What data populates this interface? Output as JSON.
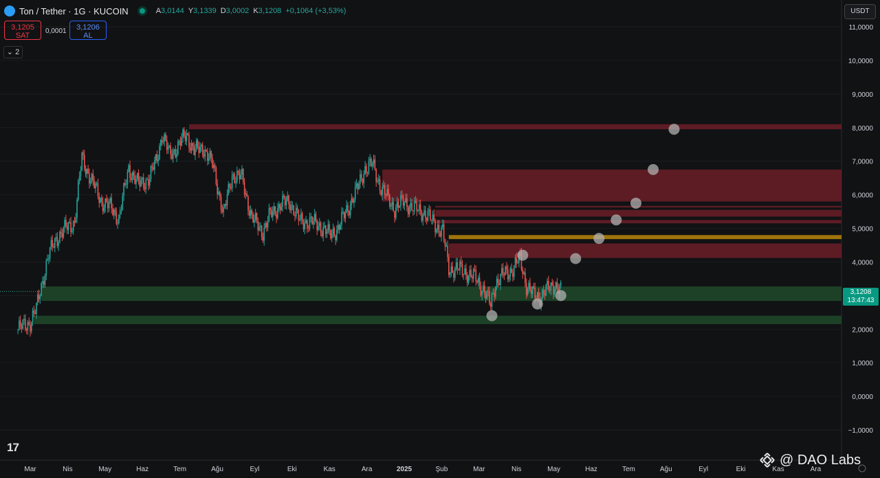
{
  "header": {
    "symbol_title": "Ton / Tether · 1G · KUCOIN",
    "ohlc": [
      {
        "k": "A",
        "v": "3,0144"
      },
      {
        "k": "Y",
        "v": "3,1339"
      },
      {
        "k": "D",
        "v": "3,0002"
      },
      {
        "k": "K",
        "v": "3,1208"
      },
      {
        "k": "",
        "v": "+0,1064 (+3,53%)"
      }
    ]
  },
  "trade": {
    "sell_price": "3,1205",
    "sell_label": "SAT",
    "spread": "0,0001",
    "buy_price": "3,1206",
    "buy_label": "AL"
  },
  "indicator_toggle": "2",
  "currency_button": "USDT",
  "last_price": {
    "value": "3,1208",
    "countdown": "13:47:43"
  },
  "watermark": {
    "tv_logo": "17",
    "brand": "@ DAO Labs"
  },
  "colors": {
    "background": "#111214",
    "up": "#26a69a",
    "down": "#ef5350",
    "resistance_zone": "#6b1f27",
    "support_zone": "#1f4a2a",
    "pivot_line": "#b8860b",
    "marker": "#b0b0b0"
  },
  "chart_data": {
    "type": "candlestick",
    "y_ticks": [
      "11,0000",
      "10,0000",
      "9,0000",
      "8,0000",
      "7,0000",
      "6,0000",
      "5,0000",
      "4,0000",
      "3,0000",
      "2,0000",
      "1,0000",
      "0,0000",
      "−1,0000"
    ],
    "y_tick_values": [
      11,
      10,
      9,
      8,
      7,
      6,
      5,
      4,
      3,
      2,
      1,
      0,
      -1
    ],
    "x_ticks": [
      "Mar",
      "Nis",
      "May",
      "Haz",
      "Tem",
      "Ağu",
      "Eyl",
      "Eki",
      "Kas",
      "Ara",
      "2025",
      "Şub",
      "Mar",
      "Nis",
      "May",
      "Haz",
      "Tem",
      "Ağu",
      "Eyl",
      "Eki",
      "Kas",
      "Ara"
    ],
    "price_path": [
      [
        "2024-02-20",
        2.0
      ],
      [
        "2024-03-01",
        2.2
      ],
      [
        "2024-03-06",
        2.6
      ],
      [
        "2024-03-10",
        3.3
      ],
      [
        "2024-03-16",
        4.2
      ],
      [
        "2024-03-22",
        4.7
      ],
      [
        "2024-03-30",
        5.0
      ],
      [
        "2024-04-06",
        5.2
      ],
      [
        "2024-04-12",
        7.1
      ],
      [
        "2024-04-20",
        6.4
      ],
      [
        "2024-04-28",
        5.8
      ],
      [
        "2024-05-06",
        5.6
      ],
      [
        "2024-05-12",
        5.3
      ],
      [
        "2024-05-20",
        6.8
      ],
      [
        "2024-05-28",
        6.3
      ],
      [
        "2024-06-06",
        6.5
      ],
      [
        "2024-06-12",
        7.1
      ],
      [
        "2024-06-16",
        7.8
      ],
      [
        "2024-06-22",
        7.2
      ],
      [
        "2024-06-28",
        7.4
      ],
      [
        "2024-07-06",
        7.8
      ],
      [
        "2024-07-12",
        7.3
      ],
      [
        "2024-07-20",
        7.4
      ],
      [
        "2024-07-28",
        6.8
      ],
      [
        "2024-08-05",
        5.4
      ],
      [
        "2024-08-12",
        6.6
      ],
      [
        "2024-08-20",
        6.5
      ],
      [
        "2024-08-28",
        5.3
      ],
      [
        "2024-09-06",
        4.9
      ],
      [
        "2024-09-12",
        5.4
      ],
      [
        "2024-09-20",
        5.7
      ],
      [
        "2024-09-28",
        5.8
      ],
      [
        "2024-10-06",
        5.2
      ],
      [
        "2024-10-14",
        5.2
      ],
      [
        "2024-10-22",
        5.1
      ],
      [
        "2024-10-30",
        4.8
      ],
      [
        "2024-11-06",
        5.0
      ],
      [
        "2024-11-14",
        5.6
      ],
      [
        "2024-11-22",
        6.2
      ],
      [
        "2024-11-28",
        6.8
      ],
      [
        "2024-12-04",
        6.9
      ],
      [
        "2024-12-10",
        6.3
      ],
      [
        "2024-12-16",
        5.9
      ],
      [
        "2024-12-22",
        5.6
      ],
      [
        "2024-12-30",
        5.8
      ],
      [
        "2025-01-06",
        5.6
      ],
      [
        "2025-01-14",
        5.5
      ],
      [
        "2025-01-22",
        5.2
      ],
      [
        "2025-01-30",
        4.9
      ],
      [
        "2025-02-04",
        3.8
      ],
      [
        "2025-02-10",
        3.8
      ],
      [
        "2025-02-18",
        3.7
      ],
      [
        "2025-02-26",
        3.5
      ],
      [
        "2025-03-04",
        3.2
      ],
      [
        "2025-03-10",
        2.7
      ],
      [
        "2025-03-14",
        3.4
      ],
      [
        "2025-03-20",
        3.6
      ],
      [
        "2025-03-28",
        3.8
      ],
      [
        "2025-04-03",
        4.1
      ],
      [
        "2025-04-08",
        3.3
      ],
      [
        "2025-04-14",
        3.0
      ],
      [
        "2025-04-20",
        3.0
      ],
      [
        "2025-04-26",
        3.2
      ],
      [
        "2025-05-01",
        3.35
      ],
      [
        "2025-05-06",
        3.12
      ]
    ],
    "resistance_zones": [
      {
        "from": "2024-07-08",
        "to": "2025-12-31",
        "low": 7.95,
        "high": 8.1
      },
      {
        "from": "2024-12-12",
        "to": "2025-12-31",
        "low": 5.8,
        "high": 6.75
      },
      {
        "from": "2025-01-24",
        "to": "2025-12-31",
        "low": 5.62,
        "high": 5.67
      },
      {
        "from": "2025-01-24",
        "to": "2025-12-31",
        "low": 5.35,
        "high": 5.55
      },
      {
        "from": "2025-01-24",
        "to": "2025-12-31",
        "low": 5.15,
        "high": 5.25
      },
      {
        "from": "2025-02-04",
        "to": "2025-12-31",
        "low": 4.12,
        "high": 4.55
      }
    ],
    "pivot_lines": [
      {
        "from": "2025-02-04",
        "to": "2025-12-31",
        "low": 4.68,
        "high": 4.8
      }
    ],
    "support_zones": [
      {
        "from": "2024-03-10",
        "to": "2025-12-31",
        "low": 2.84,
        "high": 3.27
      },
      {
        "from": "2024-03-04",
        "to": "2025-12-31",
        "low": 2.15,
        "high": 2.4
      }
    ],
    "markers": [
      [
        "2025-03-11",
        2.4
      ],
      [
        "2025-04-05",
        4.2
      ],
      [
        "2025-04-17",
        2.75
      ],
      [
        "2025-05-06",
        3.0
      ],
      [
        "2025-05-18",
        4.1
      ],
      [
        "2025-06-06",
        4.7
      ],
      [
        "2025-06-20",
        5.25
      ],
      [
        "2025-07-06",
        5.75
      ],
      [
        "2025-07-20",
        6.75
      ],
      [
        "2025-08-06",
        7.95
      ]
    ]
  }
}
